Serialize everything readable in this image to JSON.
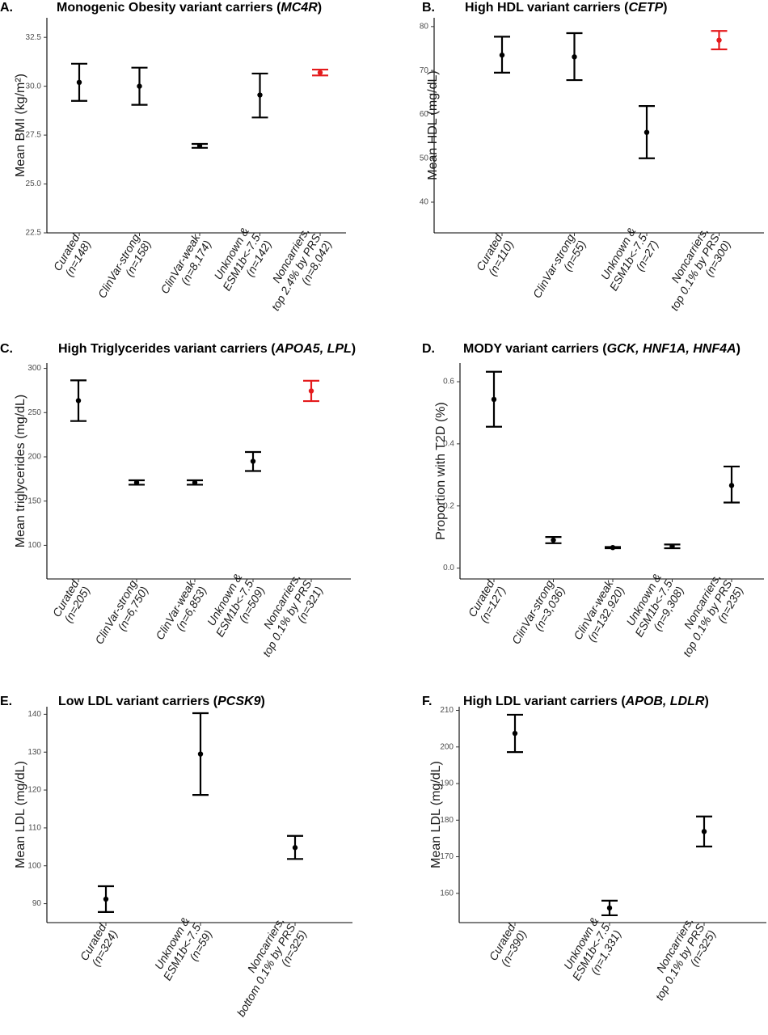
{
  "chart_data": [
    {
      "type": "scatter",
      "letter": "A.",
      "title_parts": [
        {
          "text": "Monogenic Obesity variant carriers (",
          "italic": false
        },
        {
          "text": "MC4R",
          "italic": true
        },
        {
          "text": ")",
          "italic": false
        }
      ],
      "ylabel": "Mean BMI (kg/m²)",
      "ylim": [
        22.5,
        33.5
      ],
      "yticks": [
        22.5,
        25.0,
        27.5,
        30.0,
        32.5
      ],
      "yticklabels": [
        "22.5",
        "25.0",
        "27.5",
        "30.0",
        "32.5"
      ],
      "categories": [
        {
          "line1": "Curated",
          "line2": "(n=148)"
        },
        {
          "line1": "ClinVar-strong",
          "line2": "(n=158)"
        },
        {
          "line1": "ClinVar-weak",
          "line2": "(n=8,174)"
        },
        {
          "line1": "Unknown &",
          "line2": "ESM1b<-7.5",
          "line3": "(n=142)"
        },
        {
          "line1": "Noncarriers,",
          "line2": "top 2.4% by PRS",
          "line3": "(n=8,042)"
        }
      ],
      "points": [
        {
          "mean": 30.2,
          "lo": 29.25,
          "hi": 31.15,
          "color": "#000000"
        },
        {
          "mean": 30.0,
          "lo": 29.05,
          "hi": 30.95,
          "color": "#000000"
        },
        {
          "mean": 26.95,
          "lo": 26.85,
          "hi": 27.05,
          "color": "#000000"
        },
        {
          "mean": 29.55,
          "lo": 28.4,
          "hi": 30.65,
          "color": "#000000"
        },
        {
          "mean": 30.7,
          "lo": 30.55,
          "hi": 30.85,
          "color": "#e41a1c"
        }
      ]
    },
    {
      "type": "scatter",
      "letter": "B.",
      "title_parts": [
        {
          "text": "High HDL variant carriers (",
          "italic": false
        },
        {
          "text": "CETP",
          "italic": true
        },
        {
          "text": ")",
          "italic": false
        }
      ],
      "ylabel": "Mean HDL (mg/dL)",
      "ylim": [
        33,
        82
      ],
      "yticks": [
        40,
        50,
        60,
        70,
        80
      ],
      "yticklabels": [
        "40",
        "50",
        "60",
        "70",
        "80"
      ],
      "categories": [
        {
          "line1": "Curated",
          "line2": "(n=110)"
        },
        {
          "line1": "ClinVar-strong",
          "line2": "(n=55)"
        },
        {
          "line1": "Unknown &",
          "line2": "ESM1b<-7.5",
          "line3": "(n=27)"
        },
        {
          "line1": "Noncarriers,",
          "line2": "top 0.1% by PRS",
          "line3": "(n=300)"
        }
      ],
      "points": [
        {
          "mean": 73.5,
          "lo": 69.5,
          "hi": 77.7,
          "color": "#000000"
        },
        {
          "mean": 73.1,
          "lo": 67.8,
          "hi": 78.5,
          "color": "#000000"
        },
        {
          "mean": 55.9,
          "lo": 50.0,
          "hi": 61.9,
          "color": "#000000"
        },
        {
          "mean": 76.9,
          "lo": 74.8,
          "hi": 79.0,
          "color": "#e41a1c"
        }
      ]
    },
    {
      "type": "scatter",
      "letter": "C.",
      "title_parts": [
        {
          "text": "High Triglycerides variant carriers (",
          "italic": false
        },
        {
          "text": "APOA5, LPL",
          "italic": true
        },
        {
          "text": ")",
          "italic": false
        }
      ],
      "ylabel": "Mean triglycerides (mg/dL)",
      "ylim": [
        62,
        306
      ],
      "yticks": [
        100,
        150,
        200,
        250,
        300
      ],
      "yticklabels": [
        "100",
        "150",
        "200",
        "250",
        "300"
      ],
      "categories": [
        {
          "line1": "Curated",
          "line2": "(n=205)"
        },
        {
          "line1": "ClinVar-strong",
          "line2": "(n=6,750)"
        },
        {
          "line1": "ClinVar-weak",
          "line2": "(n=6,853)"
        },
        {
          "line1": "Unknown &",
          "line2": "ESM1b<-7.5",
          "line3": "(n=509)"
        },
        {
          "line1": "Noncarriers,",
          "line2": "top 0.1% by PRS",
          "line3": "(n=321)"
        }
      ],
      "points": [
        {
          "mean": 263.5,
          "lo": 240.5,
          "hi": 286.5,
          "color": "#000000"
        },
        {
          "mean": 171.0,
          "lo": 168.5,
          "hi": 173.5,
          "color": "#000000"
        },
        {
          "mean": 171.0,
          "lo": 168.5,
          "hi": 173.5,
          "color": "#000000"
        },
        {
          "mean": 195.0,
          "lo": 184.0,
          "hi": 205.5,
          "color": "#000000"
        },
        {
          "mean": 274.5,
          "lo": 263.0,
          "hi": 286.0,
          "color": "#e41a1c"
        }
      ]
    },
    {
      "type": "scatter",
      "letter": "D.",
      "title_parts": [
        {
          "text": "MODY variant carriers (",
          "italic": false
        },
        {
          "text": "GCK, HNF1A, HNF4A",
          "italic": true
        },
        {
          "text": ")",
          "italic": false
        }
      ],
      "ylabel": "Proportion with T2D (%)",
      "ylim": [
        -0.035,
        0.66
      ],
      "yticks": [
        0.0,
        0.2,
        0.4,
        0.6
      ],
      "yticklabels": [
        "0.0",
        "0.2",
        "0.4",
        "0.6"
      ],
      "categories": [
        {
          "line1": "Curated",
          "line2": "(n=127)"
        },
        {
          "line1": "ClinVar-strong",
          "line2": "(n=3,036)"
        },
        {
          "line1": "ClinVar-weak",
          "line2": "(n=132,920)"
        },
        {
          "line1": "Unknown &",
          "line2": "ESM1b<-7.5",
          "line3": "(n=9,308)"
        },
        {
          "line1": "Noncarriers,",
          "line2": "top 0.1% by PRS",
          "line3": "(n=235)"
        }
      ],
      "points": [
        {
          "mean": 0.543,
          "lo": 0.455,
          "hi": 0.632,
          "color": "#000000"
        },
        {
          "mean": 0.09,
          "lo": 0.08,
          "hi": 0.1,
          "color": "#000000"
        },
        {
          "mean": 0.066,
          "lo": 0.064,
          "hi": 0.068,
          "color": "#000000"
        },
        {
          "mean": 0.07,
          "lo": 0.064,
          "hi": 0.076,
          "color": "#000000"
        },
        {
          "mean": 0.266,
          "lo": 0.211,
          "hi": 0.327,
          "color": "#000000"
        }
      ]
    },
    {
      "type": "scatter",
      "letter": "E.",
      "title_parts": [
        {
          "text": "Low LDL variant carriers (",
          "italic": false
        },
        {
          "text": "PCSK9",
          "italic": true
        },
        {
          "text": ")",
          "italic": false
        }
      ],
      "ylabel": "Mean LDL (mg/dL)",
      "ylim": [
        85,
        142
      ],
      "yticks": [
        90,
        100,
        110,
        120,
        130,
        140
      ],
      "yticklabels": [
        "90",
        "100",
        "110",
        "120",
        "130",
        "140"
      ],
      "categories": [
        {
          "line1": "Curated",
          "line2": "(n=324)"
        },
        {
          "line1": "Unknown &",
          "line2": "ESM1b<-7.5",
          "line3": "(n=59)"
        },
        {
          "line1": "Noncarriers,",
          "line2": "bottom 0.1% by PRS",
          "line3": "(n=325)"
        }
      ],
      "points": [
        {
          "mean": 91.2,
          "lo": 87.8,
          "hi": 94.6,
          "color": "#000000"
        },
        {
          "mean": 129.5,
          "lo": 118.7,
          "hi": 140.3,
          "color": "#000000"
        },
        {
          "mean": 104.8,
          "lo": 101.8,
          "hi": 107.9,
          "color": "#000000"
        }
      ]
    },
    {
      "type": "scatter",
      "letter": "F.",
      "title_parts": [
        {
          "text": "High LDL variant carriers (",
          "italic": false
        },
        {
          "text": "APOB, LDLR",
          "italic": true
        },
        {
          "text": ")",
          "italic": false
        }
      ],
      "ylabel": "Mean LDL (mg/dL)",
      "ylim": [
        152,
        211
      ],
      "yticks": [
        160,
        170,
        180,
        190,
        200,
        210
      ],
      "yticklabels": [
        "160",
        "170",
        "180",
        "190",
        "200",
        "210"
      ],
      "categories": [
        {
          "line1": "Curated",
          "line2": "(n=390)"
        },
        {
          "line1": "Unknown &",
          "line2": "ESM1b<-7.5",
          "line3": "(n=1,331)"
        },
        {
          "line1": "Noncarriers,",
          "line2": "top 0.1% by PRS",
          "line3": "(n=325)"
        }
      ],
      "points": [
        {
          "mean": 203.7,
          "lo": 198.6,
          "hi": 208.8,
          "color": "#000000"
        },
        {
          "mean": 156.0,
          "lo": 154.0,
          "hi": 158.0,
          "color": "#000000"
        },
        {
          "mean": 176.9,
          "lo": 172.8,
          "hi": 181.0,
          "color": "#000000"
        }
      ]
    }
  ]
}
